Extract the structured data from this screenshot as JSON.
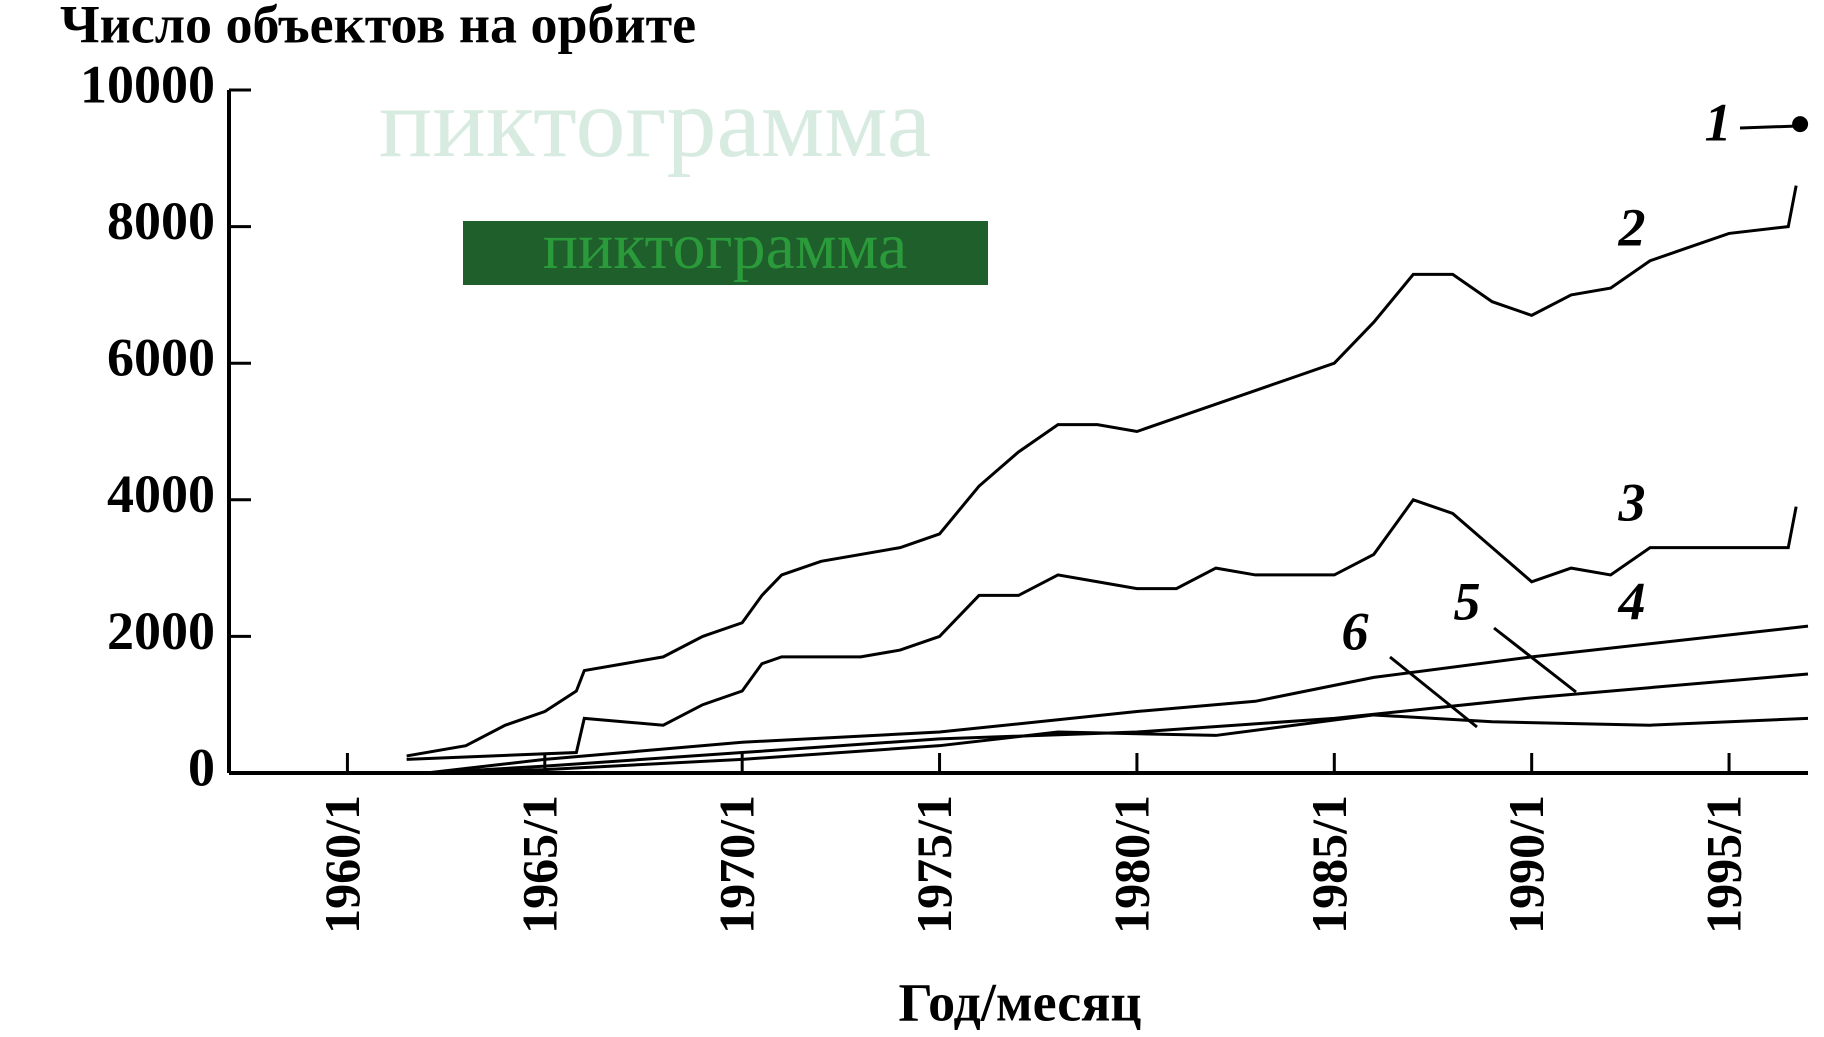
{
  "chart_data": {
    "type": "line",
    "title": "Число объектов на орбите",
    "x_label": "Год/месяц",
    "watermarks": [
      "пиктограмма",
      "пиктограмма"
    ],
    "xlim": [
      1957,
      1997
    ],
    "xticks": [
      {
        "value": 1960,
        "label": "1960/1"
      },
      {
        "value": 1965,
        "label": "1965/1"
      },
      {
        "value": 1970,
        "label": "1970/1"
      },
      {
        "value": 1975,
        "label": "1975/1"
      },
      {
        "value": 1980,
        "label": "1980/1"
      },
      {
        "value": 1985,
        "label": "1985/1"
      },
      {
        "value": 1990,
        "label": "1990/1"
      },
      {
        "value": 1995,
        "label": "1995/1"
      }
    ],
    "ylim": [
      0,
      10000
    ],
    "yticks": [
      0,
      2000,
      4000,
      6000,
      8000,
      10000
    ],
    "series": [
      {
        "name": "1",
        "color": "#000000",
        "x": [
          1996.8
        ],
        "values": [
          9500
        ]
      },
      {
        "name": "2",
        "color": "#000000",
        "x": [
          1961.5,
          1963,
          1964,
          1965,
          1965.8,
          1966,
          1967,
          1968,
          1969,
          1970,
          1970.5,
          1971,
          1972,
          1974,
          1975,
          1976,
          1977,
          1978,
          1979,
          1980,
          1981,
          1982,
          1983,
          1984,
          1985,
          1986,
          1987,
          1988,
          1989,
          1990,
          1991,
          1992,
          1993,
          1994,
          1995,
          1996.5,
          1996.7
        ],
        "values": [
          250,
          400,
          700,
          900,
          1200,
          1500,
          1600,
          1700,
          2000,
          2200,
          2600,
          2900,
          3100,
          3300,
          3500,
          4200,
          4700,
          5100,
          5100,
          5000,
          5200,
          5400,
          5600,
          5800,
          6000,
          6600,
          7300,
          7300,
          6900,
          6700,
          7000,
          7100,
          7500,
          7700,
          7900,
          8000,
          8600
        ]
      },
      {
        "name": "3",
        "color": "#000000",
        "x": [
          1961.5,
          1965.8,
          1966,
          1968,
          1969,
          1970,
          1970.5,
          1971,
          1973,
          1974,
          1975,
          1976,
          1977,
          1978,
          1979,
          1980,
          1981,
          1982,
          1983,
          1985,
          1986,
          1987,
          1988,
          1989,
          1990,
          1991,
          1992,
          1993,
          1995,
          1996.5,
          1996.7
        ],
        "values": [
          200,
          300,
          800,
          700,
          1000,
          1200,
          1600,
          1700,
          1700,
          1800,
          2000,
          2600,
          2600,
          2900,
          2800,
          2700,
          2700,
          3000,
          2900,
          2900,
          3200,
          4000,
          3800,
          3300,
          2800,
          3000,
          2900,
          3300,
          3300,
          3300,
          3900
        ]
      },
      {
        "name": "4",
        "color": "#000000",
        "x": [
          1962,
          1965,
          1970,
          1975,
          1980,
          1983,
          1986,
          1990,
          1997
        ],
        "values": [
          0,
          200,
          450,
          600,
          900,
          1050,
          1400,
          1700,
          2150
        ]
      },
      {
        "name": "5",
        "color": "#000000",
        "x": [
          1962,
          1965,
          1970,
          1975,
          1980,
          1985,
          1990,
          1997
        ],
        "values": [
          0,
          100,
          300,
          500,
          600,
          800,
          1100,
          1450
        ]
      },
      {
        "name": "6",
        "color": "#000000",
        "x": [
          1962,
          1965,
          1970,
          1975,
          1978,
          1982,
          1986,
          1989,
          1993,
          1997
        ],
        "values": [
          0,
          50,
          200,
          400,
          600,
          550,
          850,
          750,
          700,
          800
        ]
      }
    ]
  }
}
